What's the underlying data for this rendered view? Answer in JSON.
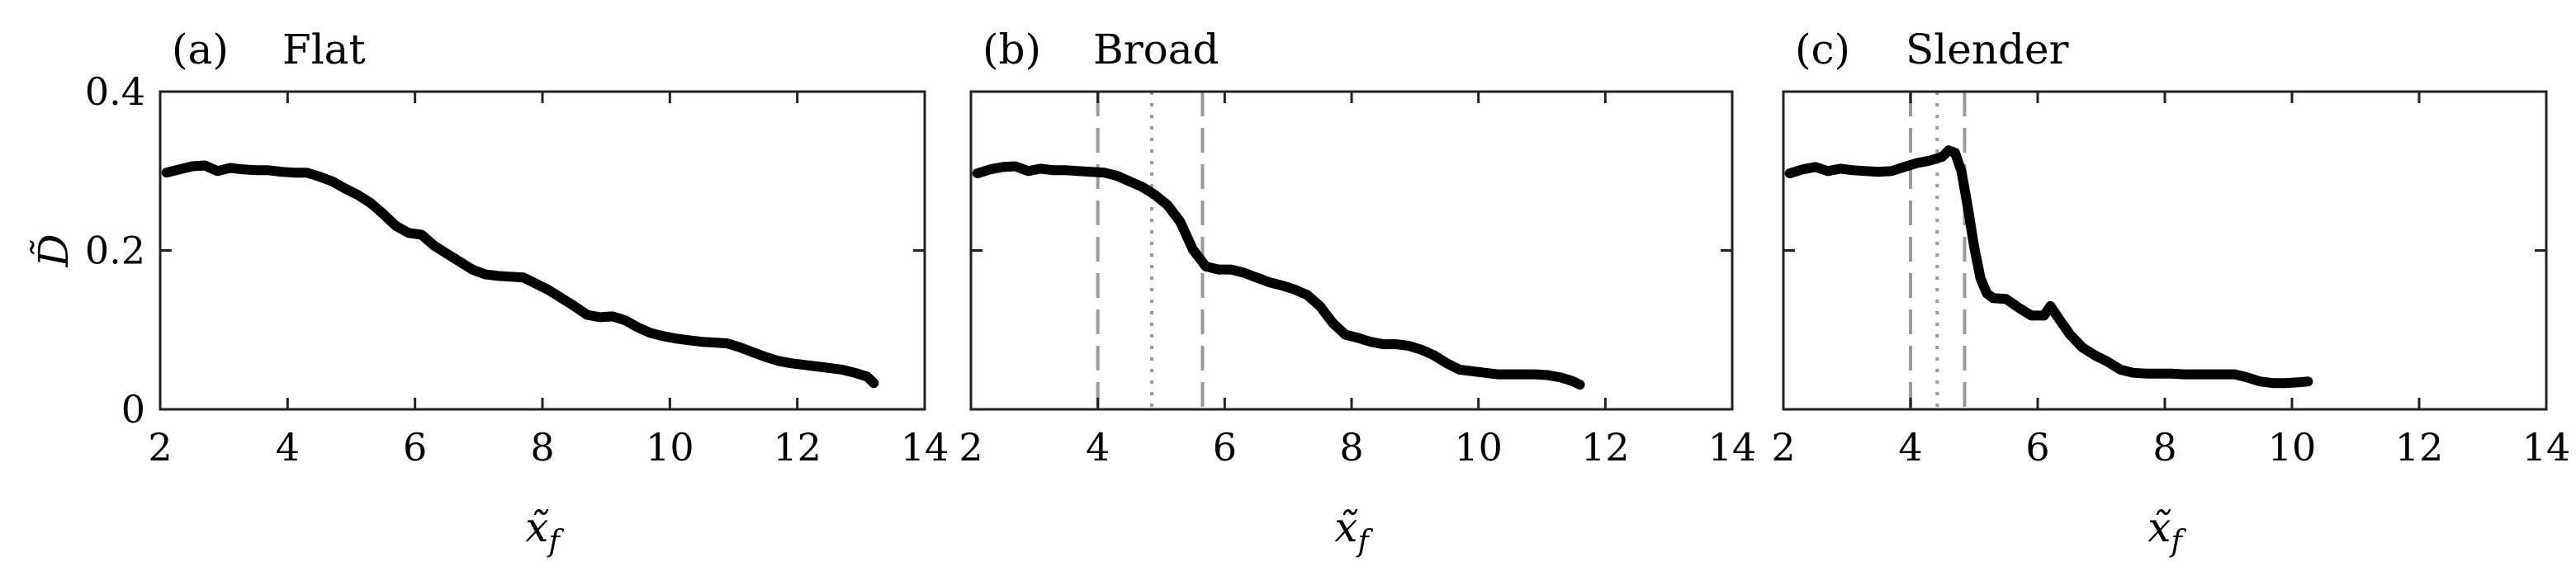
{
  "chart_data": [
    {
      "type": "line",
      "panel_label": "(a)",
      "title": "Flat",
      "xlabel": "x̃",
      "xlabel_sub": "f",
      "ylabel": "D̃",
      "xlim": [
        2,
        14
      ],
      "ylim": [
        0,
        0.4
      ],
      "xticks": [
        2,
        4,
        6,
        8,
        10,
        12,
        14
      ],
      "yticks": [
        0,
        0.2,
        0.4
      ],
      "ytick_labels": [
        "0",
        "0.2",
        "0.4"
      ],
      "show_yticklabels": true,
      "vlines_dashed": [],
      "vlines_dotted": [],
      "series": [
        {
          "x": [
            2.1,
            2.3,
            2.5,
            2.7,
            2.9,
            3.1,
            3.3,
            3.5,
            3.7,
            3.9,
            4.1,
            4.3,
            4.5,
            4.7,
            4.9,
            5.1,
            5.3,
            5.5,
            5.7,
            5.9,
            6.1,
            6.3,
            6.5,
            6.7,
            6.9,
            7.1,
            7.3,
            7.5,
            7.7,
            7.9,
            8.1,
            8.3,
            8.5,
            8.7,
            8.9,
            9.1,
            9.3,
            9.5,
            9.7,
            9.9,
            10.1,
            10.3,
            10.5,
            10.7,
            10.9,
            11.1,
            11.3,
            11.5,
            11.7,
            11.9,
            12.1,
            12.3,
            12.5,
            12.7,
            12.9,
            13.1,
            13.2
          ],
          "y": [
            0.298,
            0.302,
            0.306,
            0.307,
            0.3,
            0.304,
            0.302,
            0.301,
            0.301,
            0.299,
            0.298,
            0.298,
            0.293,
            0.287,
            0.278,
            0.27,
            0.26,
            0.246,
            0.231,
            0.222,
            0.22,
            0.206,
            0.196,
            0.186,
            0.176,
            0.17,
            0.168,
            0.167,
            0.166,
            0.158,
            0.15,
            0.14,
            0.13,
            0.119,
            0.116,
            0.117,
            0.112,
            0.103,
            0.096,
            0.092,
            0.089,
            0.087,
            0.085,
            0.084,
            0.083,
            0.078,
            0.072,
            0.066,
            0.061,
            0.058,
            0.056,
            0.054,
            0.052,
            0.05,
            0.046,
            0.041,
            0.033
          ]
        }
      ]
    },
    {
      "type": "line",
      "panel_label": "(b)",
      "title": "Broad",
      "xlabel": "x̃",
      "xlabel_sub": "f",
      "ylabel": "",
      "xlim": [
        2,
        14
      ],
      "ylim": [
        0,
        0.4
      ],
      "xticks": [
        2,
        4,
        6,
        8,
        10,
        12,
        14
      ],
      "yticks": [
        0,
        0.2,
        0.4
      ],
      "ytick_labels": [
        "",
        "",
        ""
      ],
      "show_yticklabels": false,
      "vlines_dashed": [
        4.0,
        5.65
      ],
      "vlines_dotted": [
        4.85
      ],
      "series": [
        {
          "x": [
            2.1,
            2.3,
            2.5,
            2.7,
            2.9,
            3.1,
            3.3,
            3.5,
            3.7,
            3.9,
            4.1,
            4.3,
            4.5,
            4.7,
            4.9,
            5.1,
            5.3,
            5.5,
            5.7,
            5.9,
            6.1,
            6.3,
            6.5,
            6.7,
            6.9,
            7.1,
            7.3,
            7.5,
            7.7,
            7.9,
            8.1,
            8.3,
            8.5,
            8.7,
            8.9,
            9.1,
            9.3,
            9.5,
            9.7,
            9.9,
            10.1,
            10.3,
            10.5,
            10.7,
            10.9,
            11.1,
            11.3,
            11.5,
            11.6
          ],
          "y": [
            0.297,
            0.302,
            0.305,
            0.306,
            0.3,
            0.303,
            0.301,
            0.301,
            0.3,
            0.299,
            0.298,
            0.294,
            0.287,
            0.28,
            0.27,
            0.257,
            0.236,
            0.201,
            0.18,
            0.176,
            0.176,
            0.172,
            0.166,
            0.16,
            0.156,
            0.151,
            0.144,
            0.13,
            0.109,
            0.094,
            0.09,
            0.085,
            0.082,
            0.082,
            0.08,
            0.075,
            0.068,
            0.058,
            0.05,
            0.048,
            0.046,
            0.044,
            0.044,
            0.044,
            0.044,
            0.043,
            0.04,
            0.035,
            0.031
          ]
        }
      ]
    },
    {
      "type": "line",
      "panel_label": "(c)",
      "title": "Slender",
      "xlabel": "x̃",
      "xlabel_sub": "f",
      "ylabel": "",
      "xlim": [
        2,
        14
      ],
      "ylim": [
        0,
        0.4
      ],
      "xticks": [
        2,
        4,
        6,
        8,
        10,
        12,
        14
      ],
      "yticks": [
        0,
        0.2,
        0.4
      ],
      "ytick_labels": [
        "",
        "",
        ""
      ],
      "show_yticklabels": false,
      "vlines_dashed": [
        4.0,
        4.85
      ],
      "vlines_dotted": [
        4.42
      ],
      "series": [
        {
          "x": [
            2.1,
            2.3,
            2.5,
            2.7,
            2.9,
            3.1,
            3.3,
            3.5,
            3.7,
            3.9,
            4.1,
            4.3,
            4.5,
            4.6,
            4.7,
            4.8,
            4.9,
            5.0,
            5.1,
            5.2,
            5.3,
            5.5,
            5.7,
            5.9,
            6.1,
            6.2,
            6.3,
            6.5,
            6.7,
            6.9,
            7.1,
            7.3,
            7.5,
            7.7,
            7.9,
            8.1,
            8.3,
            8.5,
            8.7,
            8.9,
            9.1,
            9.3,
            9.5,
            9.7,
            9.9,
            10.1,
            10.25
          ],
          "y": [
            0.297,
            0.302,
            0.305,
            0.3,
            0.303,
            0.301,
            0.3,
            0.299,
            0.3,
            0.305,
            0.31,
            0.313,
            0.318,
            0.326,
            0.323,
            0.3,
            0.255,
            0.205,
            0.165,
            0.146,
            0.14,
            0.139,
            0.128,
            0.118,
            0.118,
            0.13,
            0.118,
            0.095,
            0.078,
            0.068,
            0.06,
            0.05,
            0.046,
            0.045,
            0.045,
            0.045,
            0.044,
            0.044,
            0.044,
            0.044,
            0.044,
            0.04,
            0.035,
            0.033,
            0.033,
            0.034,
            0.035
          ]
        }
      ]
    }
  ]
}
